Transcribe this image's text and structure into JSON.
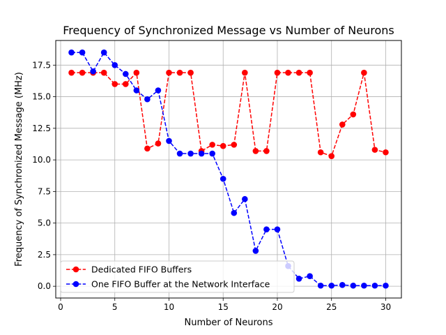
{
  "chart_data": {
    "type": "line",
    "title": "Frequency of Synchronized Message vs Number of Neurons",
    "xlabel": "Number of Neurons",
    "ylabel": "Frequency of Synchronized Message (MHz)",
    "xlim": [
      -0.45,
      31.45
    ],
    "ylim": [
      -0.93,
      19.45
    ],
    "xticks": [
      0,
      5,
      10,
      15,
      20,
      25,
      30
    ],
    "xtick_labels": [
      "0",
      "5",
      "10",
      "15",
      "20",
      "25",
      "30"
    ],
    "yticks": [
      0.0,
      2.5,
      5.0,
      7.5,
      10.0,
      12.5,
      15.0,
      17.5
    ],
    "ytick_labels": [
      "0.0",
      "2.5",
      "5.0",
      "7.5",
      "10.0",
      "12.5",
      "15.0",
      "17.5"
    ],
    "grid": true,
    "legend_position": "lower-left",
    "x": [
      1,
      2,
      3,
      4,
      5,
      6,
      7,
      8,
      9,
      10,
      11,
      12,
      13,
      14,
      15,
      16,
      17,
      18,
      19,
      20,
      21,
      22,
      23,
      24,
      25,
      26,
      27,
      28,
      29,
      30
    ],
    "series": [
      {
        "name": "Dedicated FIFO Buffers",
        "color": "#ff0000",
        "line_style": "dashed",
        "marker": "circle",
        "values": [
          16.9,
          16.9,
          16.9,
          16.9,
          16.0,
          16.0,
          16.9,
          10.9,
          11.3,
          16.9,
          16.9,
          16.9,
          10.7,
          11.2,
          11.1,
          11.2,
          16.9,
          10.7,
          10.7,
          16.9,
          16.9,
          16.9,
          16.9,
          10.6,
          10.3,
          12.8,
          13.6,
          16.9,
          10.8,
          10.6
        ]
      },
      {
        "name": "One FIFO Buffer at the Network Interface",
        "color": "#0000ff",
        "line_style": "dashed",
        "marker": "circle",
        "values": [
          18.5,
          18.5,
          17.0,
          18.5,
          17.5,
          16.8,
          15.5,
          14.8,
          15.5,
          11.5,
          10.5,
          10.5,
          10.5,
          10.5,
          8.5,
          5.8,
          6.9,
          2.8,
          4.5,
          4.5,
          1.6,
          0.6,
          0.8,
          0.05,
          0.05,
          0.1,
          0.05,
          0.05,
          0.05,
          0.05
        ]
      }
    ]
  }
}
